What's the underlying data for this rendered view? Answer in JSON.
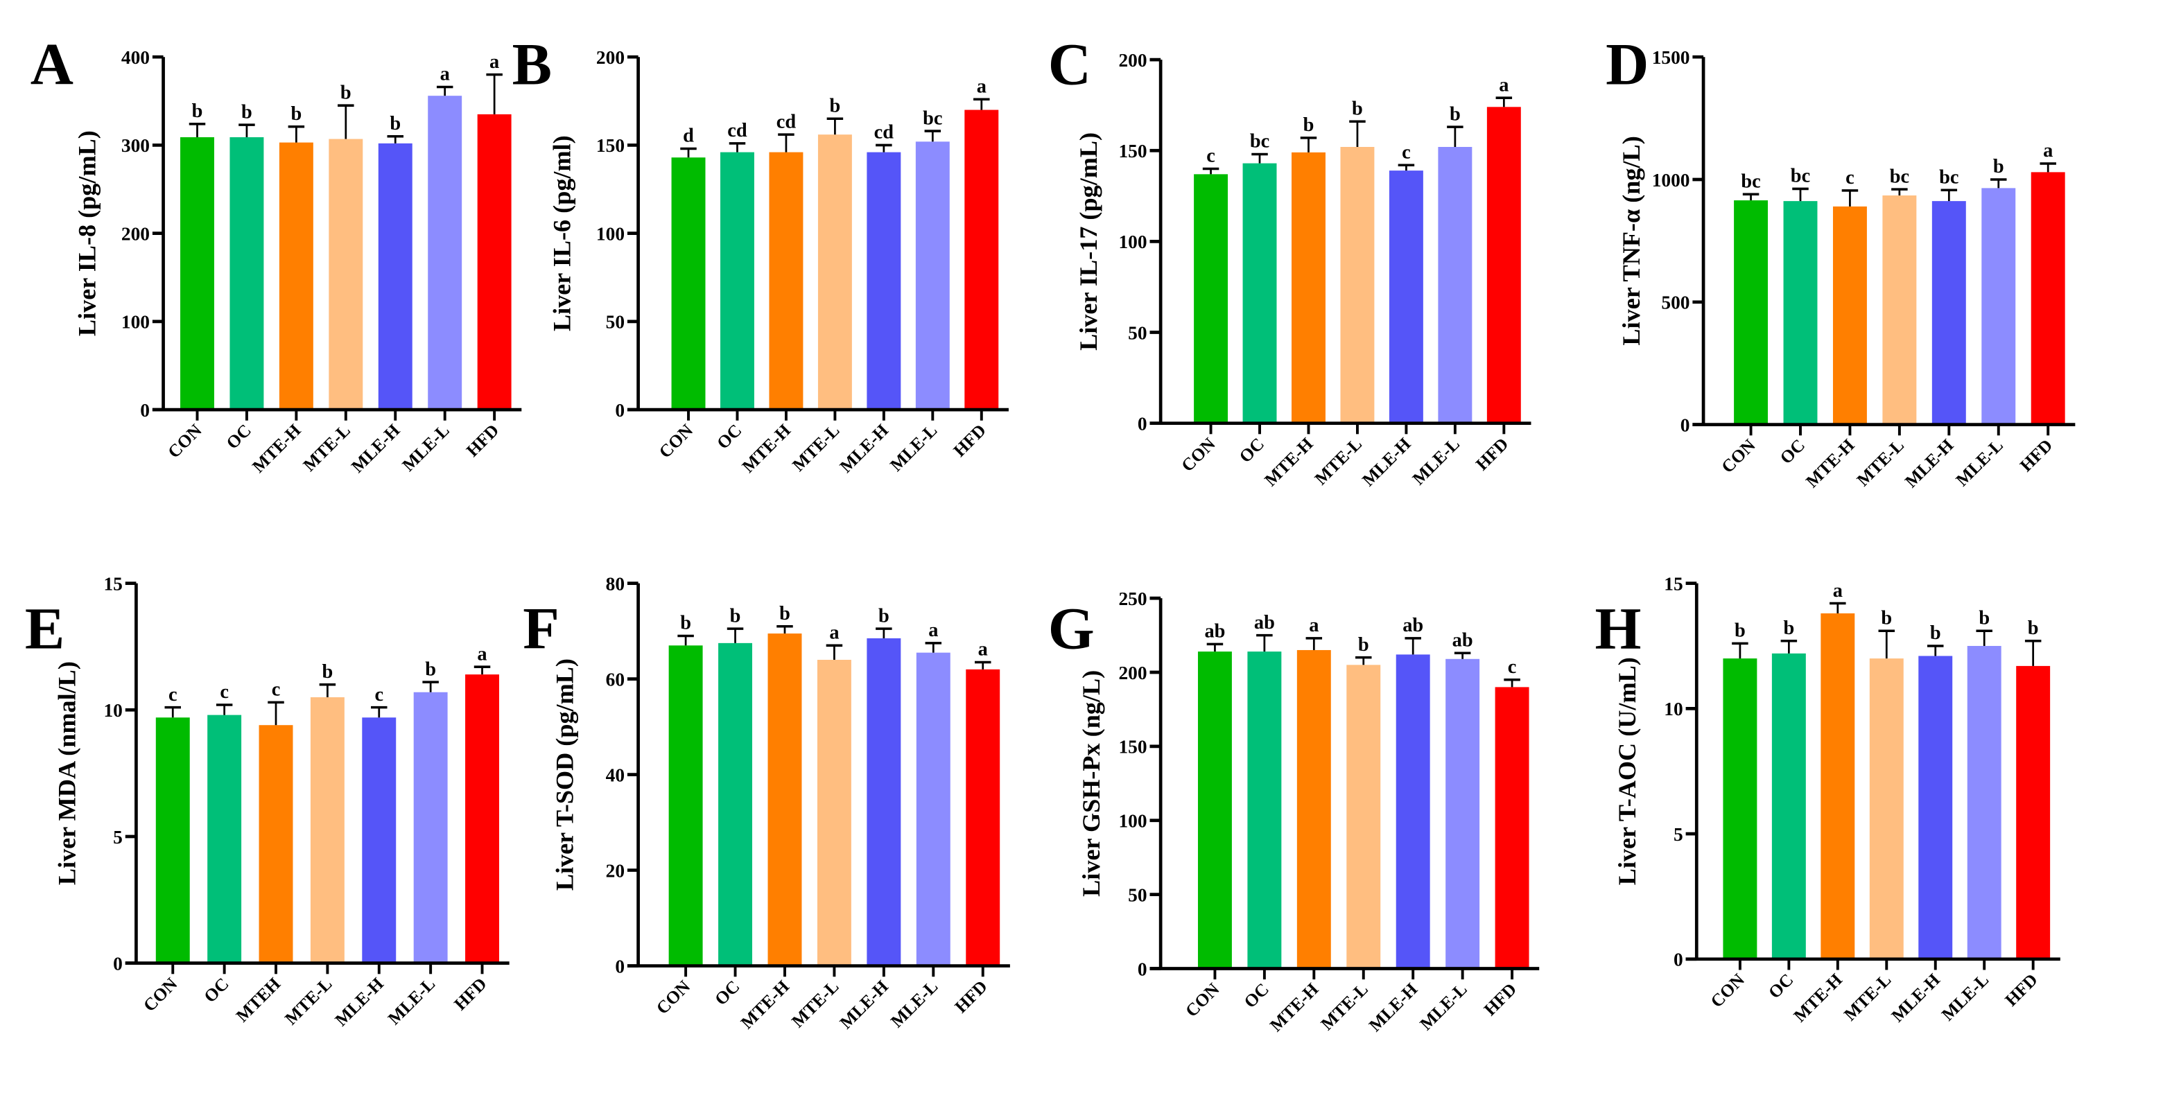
{
  "chart_data": [
    {
      "panel": "A",
      "type": "bar",
      "ylabel": "Liver IL-8 (pg/mL)",
      "ylim": [
        0,
        400
      ],
      "yticks": [
        0,
        100,
        200,
        300,
        400
      ],
      "categories": [
        "CON",
        "OC",
        "MTE-H",
        "MTE-L",
        "MLE-H",
        "MLE-L",
        "HFD"
      ],
      "values": [
        309,
        309,
        303,
        307,
        302,
        356,
        335
      ],
      "errors": [
        15,
        14,
        18,
        38,
        8,
        10,
        45
      ],
      "letters": [
        "b",
        "b",
        "b",
        "b",
        "b",
        "a",
        "a"
      ]
    },
    {
      "panel": "B",
      "type": "bar",
      "ylabel": "Liver IL-6  (pg/ml)",
      "ylim": [
        0,
        200
      ],
      "yticks": [
        0,
        50,
        100,
        150,
        200
      ],
      "categories": [
        "CON",
        "OC",
        "MTE-H",
        "MTE-L",
        "MLE-H",
        "MLE-L",
        "HFD"
      ],
      "values": [
        143,
        146,
        146,
        156,
        146,
        152,
        170
      ],
      "errors": [
        5,
        5,
        10,
        9,
        4,
        6,
        6
      ],
      "letters": [
        "d",
        "cd",
        "cd",
        "b",
        "cd",
        "bc",
        "a"
      ]
    },
    {
      "panel": "C",
      "type": "bar",
      "ylabel": "Liver IL-17 (pg/mL)",
      "ylim": [
        0,
        200
      ],
      "yticks": [
        0,
        50,
        100,
        150,
        200
      ],
      "categories": [
        "CON",
        "OC",
        "MTE-H",
        "MTE-L",
        "MLE-H",
        "MLE-L",
        "HFD"
      ],
      "values": [
        137,
        143,
        149,
        152,
        139,
        152,
        174
      ],
      "errors": [
        3,
        5,
        8,
        14,
        3,
        11,
        5
      ],
      "letters": [
        "c",
        "bc",
        "b",
        "b",
        "c",
        "b",
        "a"
      ]
    },
    {
      "panel": "D",
      "type": "bar",
      "ylabel": "Liver TNF-α (ng/L)",
      "ylim": [
        0,
        1500
      ],
      "yticks": [
        0,
        500,
        1000,
        1500
      ],
      "categories": [
        "CON",
        "OC",
        "MTE-H",
        "MTE-L",
        "MLE-H",
        "MLE-L",
        "HFD"
      ],
      "values": [
        915,
        912,
        890,
        935,
        912,
        965,
        1030
      ],
      "errors": [
        25,
        50,
        65,
        25,
        45,
        35,
        35
      ],
      "letters": [
        "bc",
        "bc",
        "c",
        "bc",
        "bc",
        "b",
        "a"
      ]
    },
    {
      "panel": "E",
      "type": "bar",
      "ylabel": "Liver MDA (nmal/L)",
      "ylim": [
        0,
        15
      ],
      "yticks": [
        0,
        5,
        10,
        15
      ],
      "categories": [
        "CON",
        "OC",
        "MTEH",
        "MTE-L",
        "MLE-H",
        "MLE-L",
        "HFD"
      ],
      "values": [
        9.7,
        9.8,
        9.4,
        10.5,
        9.7,
        10.7,
        11.4
      ],
      "errors": [
        0.4,
        0.4,
        0.9,
        0.5,
        0.4,
        0.4,
        0.3
      ],
      "letters": [
        "c",
        "c",
        "c",
        "b",
        "c",
        "b",
        "a"
      ]
    },
    {
      "panel": "F",
      "type": "bar",
      "ylabel": "Liver T-SOD (pg/mL)",
      "ylim": [
        0,
        80
      ],
      "yticks": [
        0,
        20,
        40,
        60,
        80
      ],
      "categories": [
        "CON",
        "OC",
        "MTE-H",
        "MTE-L",
        "MLE-H",
        "MLE-L",
        "HFD"
      ],
      "values": [
        67,
        67.5,
        69.5,
        64,
        68.5,
        65.5,
        62
      ],
      "errors": [
        2,
        3,
        1.5,
        3,
        2,
        2,
        1.5
      ],
      "letters": [
        "b",
        "b",
        "b",
        "a",
        "b",
        "a",
        "a"
      ]
    },
    {
      "panel": "G",
      "type": "bar",
      "ylabel": "Liver GSH-Px (ng/L)",
      "ylim": [
        0,
        250
      ],
      "yticks": [
        0,
        50,
        100,
        150,
        200,
        250
      ],
      "categories": [
        "CON",
        "OC",
        "MTE-H",
        "MTE-L",
        "MLE-H",
        "MLE-L",
        "HFD"
      ],
      "values": [
        214,
        214,
        215,
        205,
        212,
        209,
        190
      ],
      "errors": [
        5,
        11,
        8,
        5,
        11,
        4,
        5
      ],
      "letters": [
        "ab",
        "ab",
        "a",
        "b",
        "ab",
        "ab",
        "c"
      ]
    },
    {
      "panel": "H",
      "type": "bar",
      "ylabel": "Liver T-AOC (U/mL)",
      "ylim": [
        0,
        15
      ],
      "yticks": [
        0,
        5,
        10,
        15
      ],
      "categories": [
        "CON",
        "OC",
        "MTE-H",
        "MTE-L",
        "MLE-H",
        "MLE-L",
        "HFD"
      ],
      "values": [
        12,
        12.2,
        13.8,
        12,
        12.1,
        12.5,
        11.7
      ],
      "errors": [
        0.6,
        0.5,
        0.4,
        1.1,
        0.4,
        0.6,
        1.0
      ],
      "letters": [
        "b",
        "b",
        "a",
        "b",
        "b",
        "b",
        "b"
      ]
    }
  ],
  "colors": [
    "#00bb00",
    "#00bf78",
    "#ff7f00",
    "#ffbe80",
    "#5555f8",
    "#8c8cff",
    "#ff0000"
  ]
}
